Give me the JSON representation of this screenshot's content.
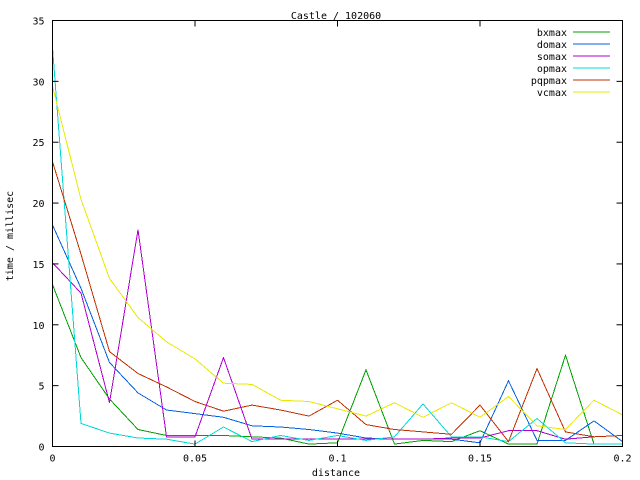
{
  "chart_data": {
    "type": "line",
    "title": "Castle / 102060",
    "xlabel": "distance",
    "ylabel": "time / millisec",
    "xlim": [
      0,
      0.2
    ],
    "ylim": [
      0,
      35
    ],
    "xticks": [
      0,
      0.05,
      0.1,
      0.15,
      0.2
    ],
    "xtick_labels": [
      "0",
      "0.05",
      "0.1",
      "0.15",
      "0.2"
    ],
    "yticks": [
      0,
      5,
      10,
      15,
      20,
      25,
      30,
      35
    ],
    "ytick_labels": [
      "0",
      "5",
      "10",
      "15",
      "20",
      "25",
      "30",
      "35"
    ],
    "grid": false,
    "legend_position": "top-right",
    "x": [
      0,
      0.01,
      0.02,
      0.03,
      0.04,
      0.05,
      0.06,
      0.07,
      0.08,
      0.09,
      0.1,
      0.11,
      0.12,
      0.13,
      0.14,
      0.15,
      0.16,
      0.17,
      0.18,
      0.19,
      0.2
    ],
    "series": [
      {
        "name": "bxmax",
        "color": "#00a000",
        "values": [
          13.3,
          7.3,
          3.9,
          1.4,
          0.9,
          0.9,
          0.9,
          0.8,
          0.7,
          0.2,
          0.3,
          6.3,
          0.2,
          0.5,
          0.4,
          1.3,
          0.2,
          0.2,
          7.5,
          0.2,
          0.2
        ]
      },
      {
        "name": "domax",
        "color": "#0060e0",
        "values": [
          18.2,
          13.0,
          6.9,
          4.4,
          3.0,
          2.7,
          2.4,
          1.7,
          1.6,
          1.4,
          1.1,
          0.7,
          0.6,
          0.6,
          0.6,
          0.3,
          5.4,
          0.5,
          0.5,
          2.1,
          0.4
        ]
      },
      {
        "name": "somax",
        "color": "#b000d0",
        "values": [
          15.1,
          12.6,
          3.6,
          17.8,
          0.8,
          0.8,
          7.3,
          0.6,
          0.6,
          0.6,
          0.6,
          0.6,
          0.6,
          0.6,
          0.7,
          0.7,
          1.3,
          1.3,
          0.6,
          0.8,
          0.9
        ]
      },
      {
        "name": "opmax",
        "color": "#00d8d8",
        "values": [
          32.8,
          1.9,
          1.1,
          0.7,
          0.6,
          0.2,
          1.6,
          0.4,
          0.9,
          0.5,
          0.9,
          0.5,
          0.8,
          3.5,
          0.8,
          0.8,
          0.4,
          2.3,
          0.3,
          0.2,
          0.2
        ]
      },
      {
        "name": "pqpmax",
        "color": "#c03000",
        "values": [
          23.4,
          15.8,
          7.8,
          6.0,
          4.9,
          3.7,
          2.9,
          3.4,
          3.0,
          2.5,
          3.8,
          1.8,
          1.4,
          1.2,
          1.0,
          3.4,
          0.4,
          6.4,
          1.2,
          0.8,
          0.9
        ]
      },
      {
        "name": "vcmax",
        "color": "#e8e800",
        "values": [
          29.6,
          20.3,
          13.8,
          10.6,
          8.6,
          7.2,
          5.2,
          5.1,
          3.8,
          3.7,
          3.1,
          2.5,
          3.6,
          2.4,
          3.6,
          2.4,
          4.1,
          1.7,
          1.4,
          3.8,
          2.6
        ]
      }
    ]
  }
}
